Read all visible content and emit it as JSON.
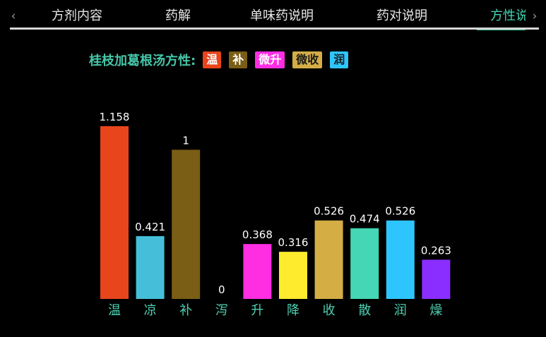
{
  "tabs": [
    {
      "label": "方剂内容",
      "active": false
    },
    {
      "label": "药解",
      "active": false
    },
    {
      "label": "单味药说明",
      "active": false
    },
    {
      "label": "药对说明",
      "active": false
    },
    {
      "label": "方性说明",
      "active": true
    }
  ],
  "nav": {
    "prev_icon": "chevron-left-icon",
    "next_icon": "chevron-right-icon",
    "prev_glyph": "‹",
    "next_glyph": "›"
  },
  "legend": {
    "title": "桂枝加葛根汤方性:",
    "chips": [
      {
        "label": "温",
        "bg": "#e8451c",
        "color": "#ffffff"
      },
      {
        "label": "补",
        "bg": "#7a5e16",
        "color": "#ffffff"
      },
      {
        "label": "微升",
        "bg": "#ff2ee3",
        "color": "#ffffff"
      },
      {
        "label": "微收",
        "bg": "#d4ad45",
        "color": "#1a1a1a"
      },
      {
        "label": "润",
        "bg": "#2ec5ff",
        "color": "#1a1a1a"
      }
    ]
  },
  "chart_data": {
    "type": "bar",
    "title": "",
    "xlabel": "",
    "ylabel": "",
    "grid": false,
    "ylim": [
      0,
      1.158
    ],
    "categories": [
      "温",
      "凉",
      "补",
      "泻",
      "升",
      "降",
      "收",
      "散",
      "润",
      "燥"
    ],
    "values": [
      1.158,
      0.421,
      1,
      0,
      0.368,
      0.316,
      0.526,
      0.474,
      0.526,
      0.263
    ],
    "value_labels": [
      "1.158",
      "0.421",
      "1",
      "0",
      "0.368",
      "0.316",
      "0.526",
      "0.474",
      "0.526",
      "0.263"
    ],
    "colors": [
      "#e8451c",
      "#45bfd9",
      "#7a5e16",
      "#7a5e16",
      "#ff2ee3",
      "#ffeb2e",
      "#d4ad45",
      "#45d6b5",
      "#2ec5ff",
      "#8a2eff"
    ]
  }
}
